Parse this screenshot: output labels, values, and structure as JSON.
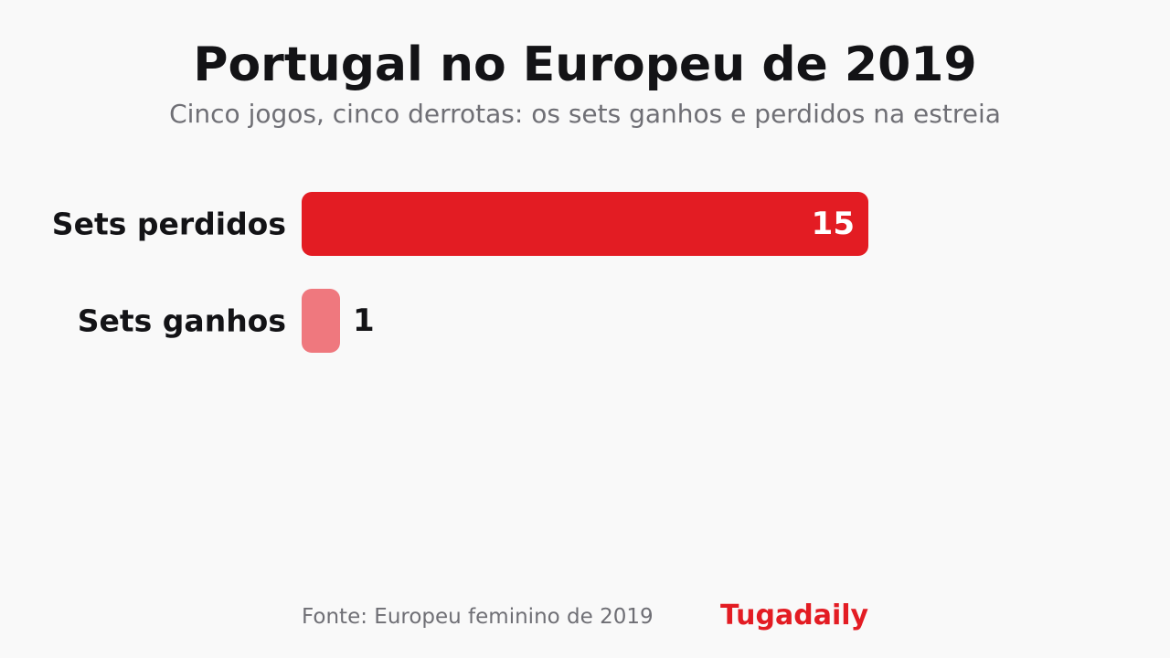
{
  "header": {
    "title": "Portugal no Europeu de 2019",
    "subtitle": "Cinco jogos, cinco derrotas: os sets ganhos e perdidos na estreia"
  },
  "chart_data": {
    "type": "bar",
    "orientation": "horizontal",
    "categories": [
      "Sets perdidos",
      "Sets ganhos"
    ],
    "values": [
      15,
      1
    ],
    "value_labels": [
      "15",
      "1"
    ],
    "colors": [
      "#e31c23",
      "#ef787e"
    ],
    "xlim": [
      0,
      15
    ],
    "grid": false
  },
  "footer": {
    "source": "Fonte: Europeu feminino de 2019",
    "brand": "Tugadaily",
    "brand_color": "#e31c23"
  }
}
